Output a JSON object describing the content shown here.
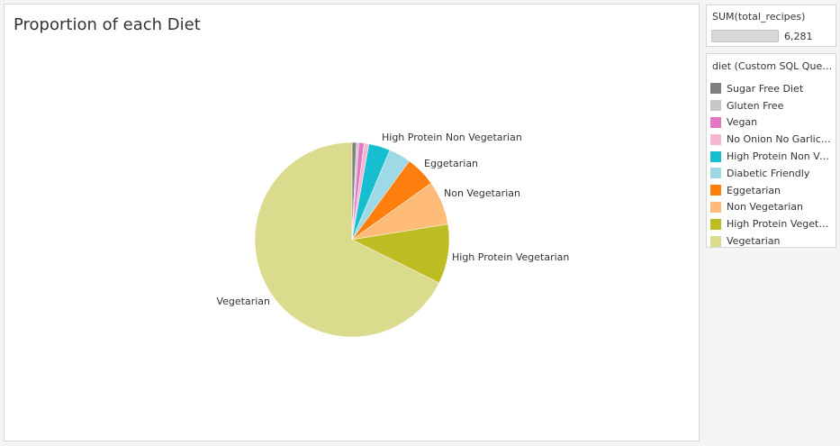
{
  "chart_data": {
    "type": "pie",
    "title": "Proportion of each Diet",
    "slices": [
      {
        "name": "Sugar Free Diet",
        "value": 45,
        "color": "#7f7f7f"
      },
      {
        "name": "Gluten Free",
        "value": 25,
        "color": "#c7c7c7"
      },
      {
        "name": "Vegan",
        "value": 55,
        "color": "#e377c2"
      },
      {
        "name": "No Onion No Garlic (Sattvic)",
        "value": 50,
        "color": "#f7b6d2"
      },
      {
        "name": "High Protein Non Vegetarian",
        "value": 225,
        "color": "#17becf",
        "label": "High Protein Non Vegetarian"
      },
      {
        "name": "Diabetic Friendly",
        "value": 230,
        "color": "#9edae5"
      },
      {
        "name": "Eggetarian",
        "value": 320,
        "color": "#ff7f0e",
        "label": "Eggetarian"
      },
      {
        "name": "Non Vegetarian",
        "value": 460,
        "color": "#ffbb78",
        "label": "Non Vegetarian"
      },
      {
        "name": "High Protein Vegetarian",
        "value": 620,
        "color": "#bcbd22",
        "label": "High Protein Vegetarian"
      },
      {
        "name": "Vegetarian",
        "value": 4251,
        "color": "#dbdb8d",
        "label": "Vegetarian"
      }
    ]
  },
  "sum_card": {
    "title": "SUM(total_recipes)",
    "value": "6,281"
  },
  "legend": {
    "title": "diet (Custom SQL Query)",
    "items": [
      {
        "label": "Sugar Free Diet",
        "color": "#7f7f7f"
      },
      {
        "label": "Gluten Free",
        "color": "#c7c7c7"
      },
      {
        "label": "Vegan",
        "color": "#e377c2"
      },
      {
        "label": "No Onion No Garlic (Sattvic)",
        "color": "#f7b6d2"
      },
      {
        "label": "High Protein Non Vegetarian",
        "color": "#17becf"
      },
      {
        "label": "Diabetic Friendly",
        "color": "#9edae5"
      },
      {
        "label": "Eggetarian",
        "color": "#ff7f0e"
      },
      {
        "label": "Non Vegetarian",
        "color": "#ffbb78"
      },
      {
        "label": "High Protein Vegetarian",
        "color": "#bcbd22"
      },
      {
        "label": "Vegetarian",
        "color": "#dbdb8d"
      }
    ]
  }
}
